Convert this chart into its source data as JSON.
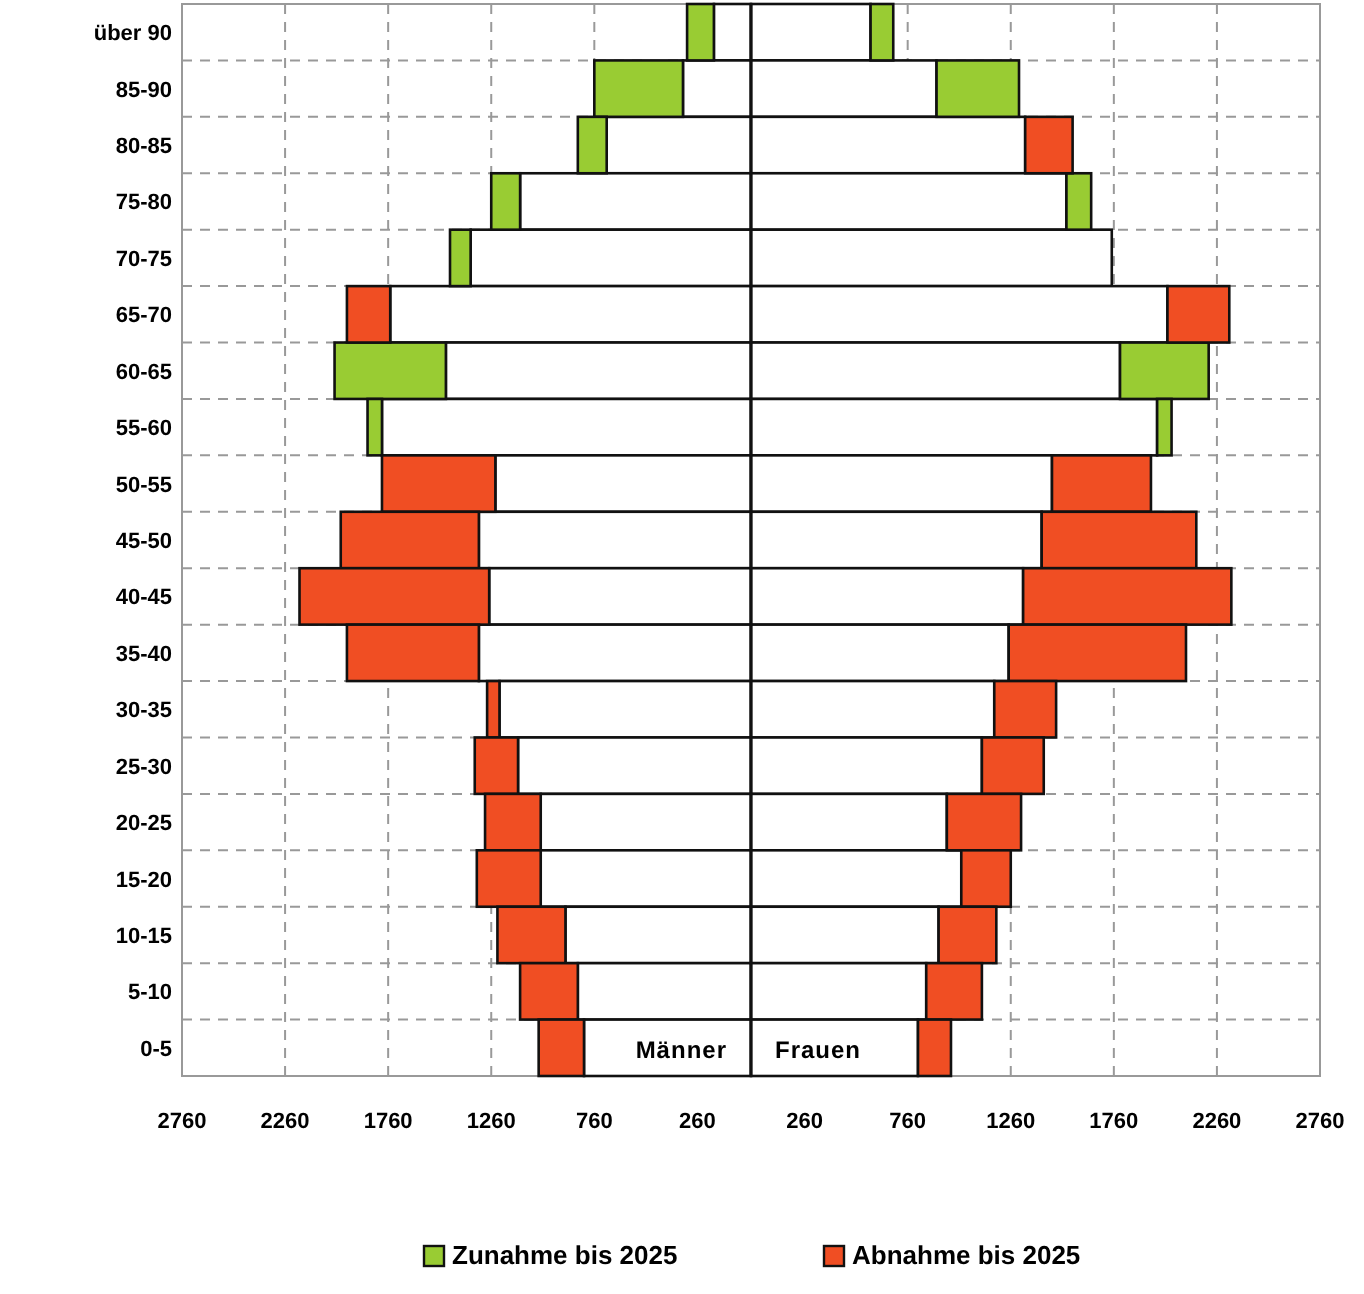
{
  "chart_data": {
    "type": "bar",
    "orientation": "horizontal",
    "stacked": true,
    "categories": [
      "über 90",
      "85-90",
      "80-85",
      "75-80",
      "70-75",
      "65-70",
      "60-65",
      "55-60",
      "50-55",
      "45-50",
      "40-45",
      "35-40",
      "30-35",
      "25-30",
      "20-25",
      "15-20",
      "10-15",
      "5-10",
      "0-5"
    ],
    "series": [
      {
        "color": "#ffffff",
        "values": [
          -180,
          -330,
          -700,
          -1120,
          -1360,
          -1750,
          -1480,
          -1790,
          -1240,
          -1320,
          -1270,
          -1320,
          -1220,
          -1130,
          -1020,
          -1020,
          -900,
          -840,
          -810
        ]
      },
      {
        "name": "Zunahme bis 2025",
        "color": "#99cc33",
        "values": [
          -130,
          -430,
          -140,
          -140,
          -100,
          null,
          -540,
          -70,
          null,
          null,
          null,
          null,
          null,
          null,
          null,
          null,
          null,
          null,
          null
        ]
      },
      {
        "name": "Abnahme bis 2025",
        "color": "#f04e23",
        "values": [
          null,
          null,
          null,
          null,
          null,
          -210,
          null,
          null,
          -550,
          -670,
          -920,
          -640,
          -60,
          -210,
          -270,
          -310,
          -330,
          -280,
          -220
        ]
      },
      {
        "color": "#ffffff",
        "values": [
          580,
          900,
          1330,
          1530,
          1750,
          2020,
          1790,
          1970,
          1460,
          1410,
          1320,
          1250,
          1180,
          1120,
          950,
          1020,
          910,
          850,
          810
        ]
      },
      {
        "color": "#99cc33",
        "values": [
          110,
          400,
          null,
          120,
          null,
          null,
          430,
          70,
          null,
          null,
          null,
          null,
          null,
          null,
          null,
          null,
          null,
          null,
          null
        ]
      },
      {
        "color": "#f04e23",
        "values": [
          null,
          null,
          230,
          null,
          null,
          300,
          null,
          null,
          480,
          750,
          1010,
          860,
          300,
          300,
          360,
          240,
          280,
          270,
          160
        ]
      }
    ],
    "xlim": [
      -2760,
      2760
    ],
    "xticks": [
      {
        "value": -2760,
        "label": "2760"
      },
      {
        "value": -2260,
        "label": "2260"
      },
      {
        "value": -1760,
        "label": "1760"
      },
      {
        "value": -1260,
        "label": "1260"
      },
      {
        "value": -760,
        "label": "760"
      },
      {
        "value": -260,
        "label": "260"
      },
      260,
      760,
      1260,
      1760,
      2260,
      2760
    ],
    "grid": true,
    "legend": "bottom",
    "annotations": [
      "Männer",
      "Frauen"
    ]
  }
}
